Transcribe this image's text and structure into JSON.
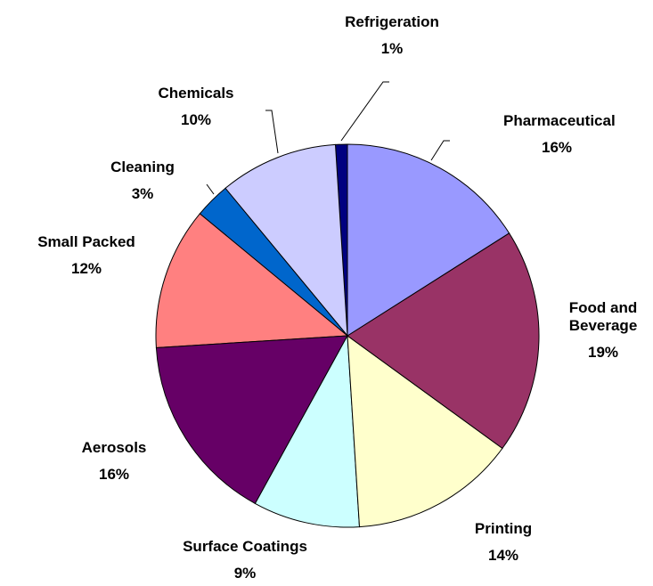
{
  "chart_data": {
    "type": "pie",
    "categories": [
      "Pharmaceutical",
      "Food and Beverage",
      "Printing",
      "Surface Coatings",
      "Aerosols",
      "Small Packed",
      "Cleaning",
      "Chemicals",
      "Refrigeration"
    ],
    "values": [
      16,
      19,
      14,
      9,
      16,
      12,
      3,
      10,
      1
    ],
    "value_labels": [
      "16%",
      "19%",
      "14%",
      "9%",
      "16%",
      "12%",
      "3%",
      "10%",
      "1%"
    ],
    "colors": [
      "#9999ff",
      "#993366",
      "#ffffcc",
      "#ccffff",
      "#660066",
      "#ff8080",
      "#0066cc",
      "#ccccff",
      "#000080"
    ]
  }
}
